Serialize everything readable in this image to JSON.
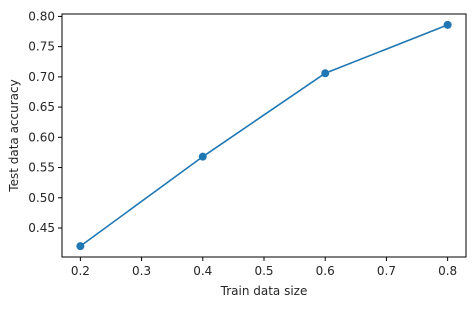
{
  "chart_data": {
    "type": "line",
    "title": "",
    "xlabel": "Train data size",
    "ylabel": "Test data accuracy",
    "x": [
      0.2,
      0.4,
      0.6,
      0.8
    ],
    "series": [
      {
        "values": [
          0.42,
          0.568,
          0.706,
          0.786
        ],
        "color": "#1f77b4",
        "marker": "circle"
      }
    ],
    "xlim": [
      0.17,
      0.83
    ],
    "ylim": [
      0.402,
      0.804
    ],
    "xticks": [
      0.2,
      0.3,
      0.4,
      0.5,
      0.6,
      0.7,
      0.8
    ],
    "xtick_labels": [
      "0.2",
      "0.3",
      "0.4",
      "0.5",
      "0.6",
      "0.7",
      "0.8"
    ],
    "yticks": [
      0.45,
      0.5,
      0.55,
      0.6,
      0.65,
      0.7,
      0.75,
      0.8
    ],
    "ytick_labels": [
      "0.45",
      "0.50",
      "0.55",
      "0.60",
      "0.65",
      "0.70",
      "0.75",
      "0.80"
    ],
    "grid": false,
    "legend": "none"
  }
}
